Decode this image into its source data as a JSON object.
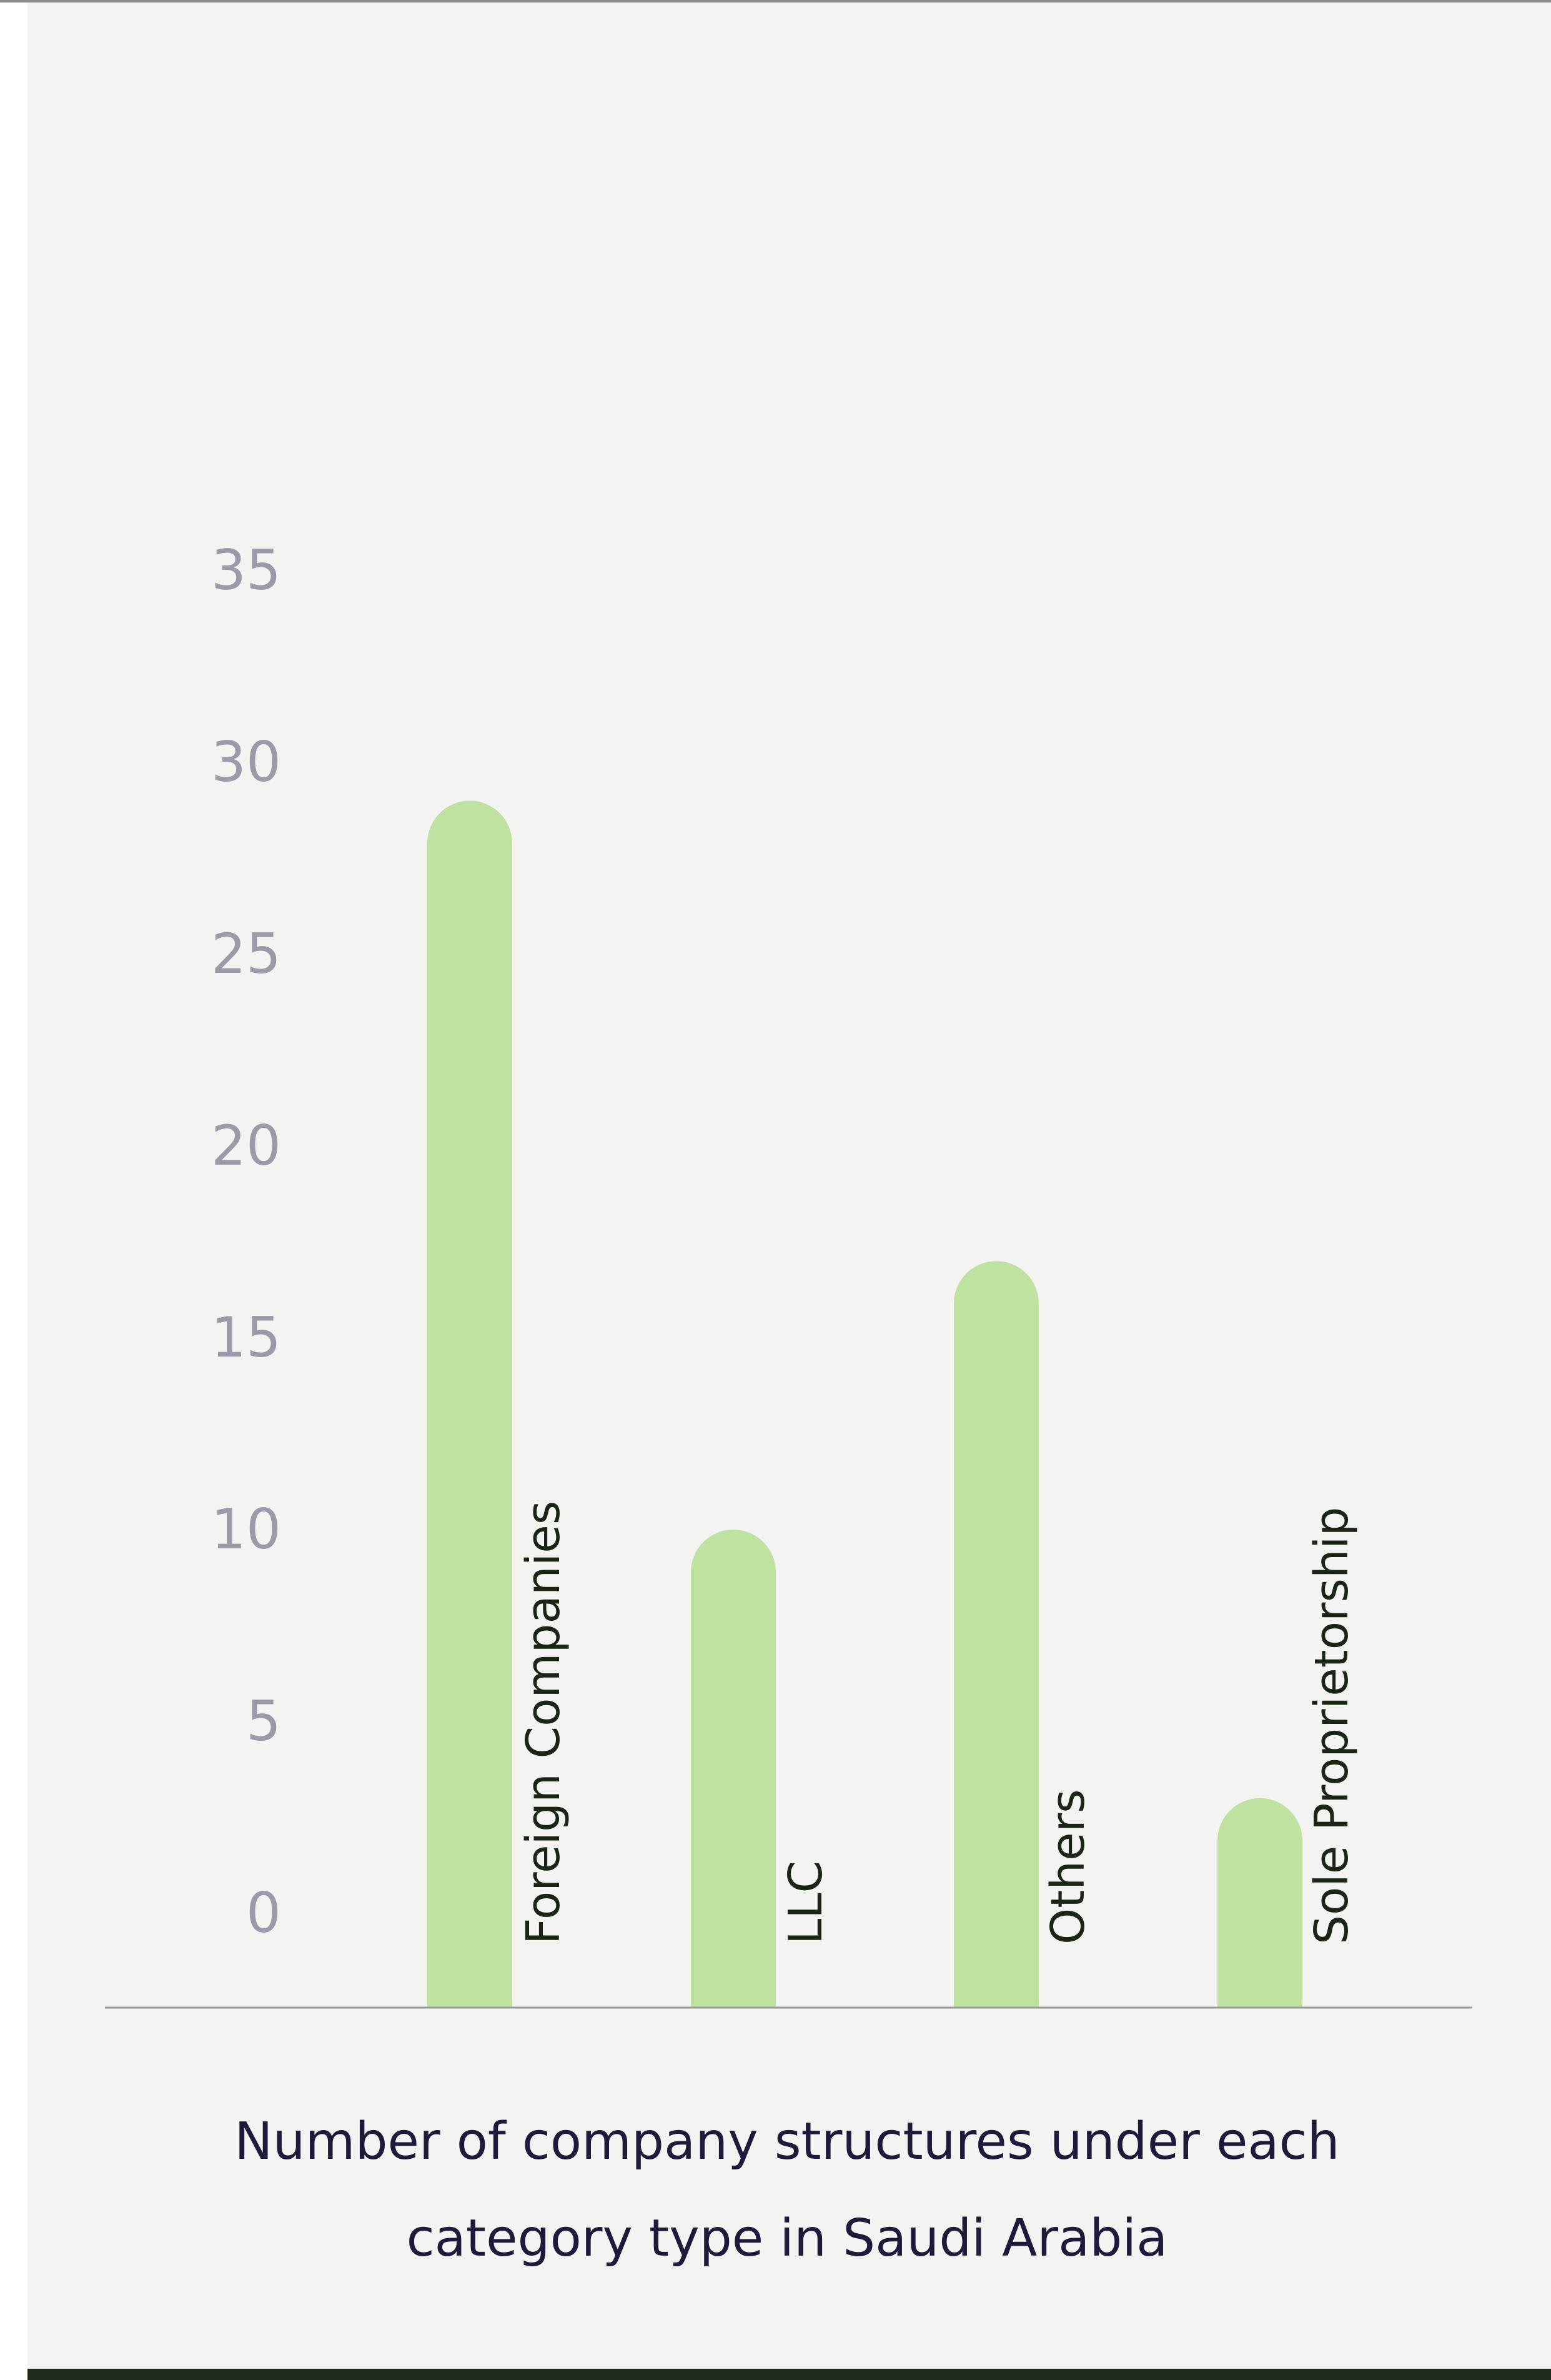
{
  "colors": {
    "background": "#f3f3f2",
    "bar": "#bfe2a0",
    "tick_label": "#9c9aa8",
    "category_label": "#1a2614",
    "baseline": "#9a9a9a",
    "caption": "#1e1b3a"
  },
  "chart_data": {
    "type": "bar",
    "categories": [
      "Foreign Companies",
      "LLC",
      "Others",
      "Sole Proprietorship"
    ],
    "values": [
      29,
      10,
      17,
      3
    ],
    "title": "",
    "xlabel": "",
    "ylabel": "",
    "caption_lines": [
      "Number of company structures under each",
      "category type in Saudi Arabia"
    ],
    "y_ticks": [
      "35",
      "30",
      "25",
      "20",
      "15",
      "10",
      "5",
      "0"
    ],
    "ylim": [
      0,
      35
    ],
    "grid": false,
    "legend": "none",
    "bar_style": "rounded-top",
    "category_label_orientation": "vertical"
  }
}
